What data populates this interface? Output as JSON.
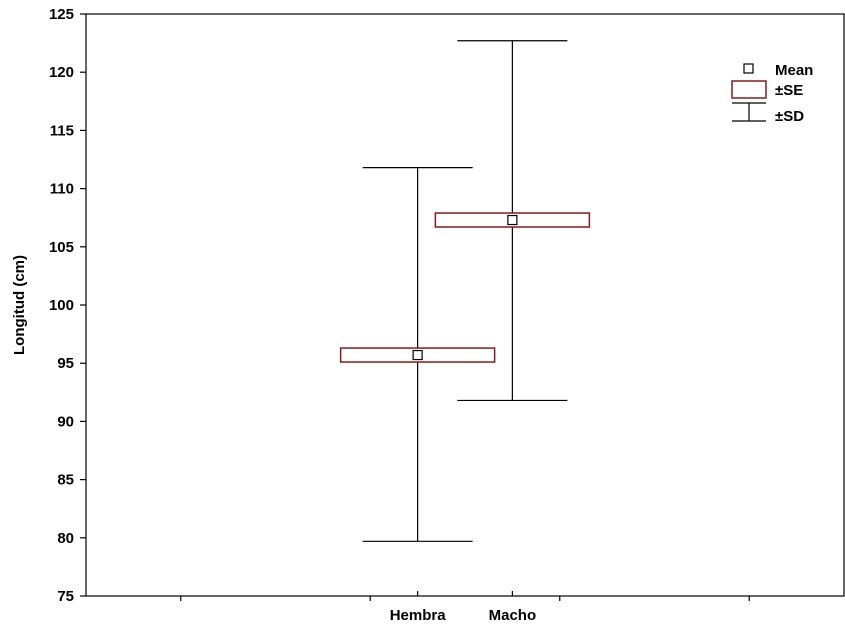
{
  "chart_data": {
    "type": "box",
    "title": "",
    "xlabel": "",
    "ylabel": "Longitud (cm)",
    "ylim": [
      75,
      125
    ],
    "yticks": [
      75,
      80,
      85,
      90,
      95,
      100,
      105,
      110,
      115,
      120,
      125
    ],
    "categories": [
      "Hembra",
      "Macho"
    ],
    "series": [
      {
        "category": "Hembra",
        "mean": 95.7,
        "se_low": 95.1,
        "se_high": 96.3,
        "sd_low": 79.7,
        "sd_high": 111.8
      },
      {
        "category": "Macho",
        "mean": 107.3,
        "se_low": 106.7,
        "se_high": 107.9,
        "sd_low": 91.8,
        "sd_high": 122.7
      }
    ],
    "legend": {
      "position": "top-right",
      "entries": [
        {
          "key": "mean",
          "label": "Mean"
        },
        {
          "key": "se",
          "label": "±SE"
        },
        {
          "key": "sd",
          "label": "±SD"
        }
      ]
    },
    "colors": {
      "se_box": "#8b1a1a",
      "lines": "#000000"
    },
    "grid": false
  }
}
